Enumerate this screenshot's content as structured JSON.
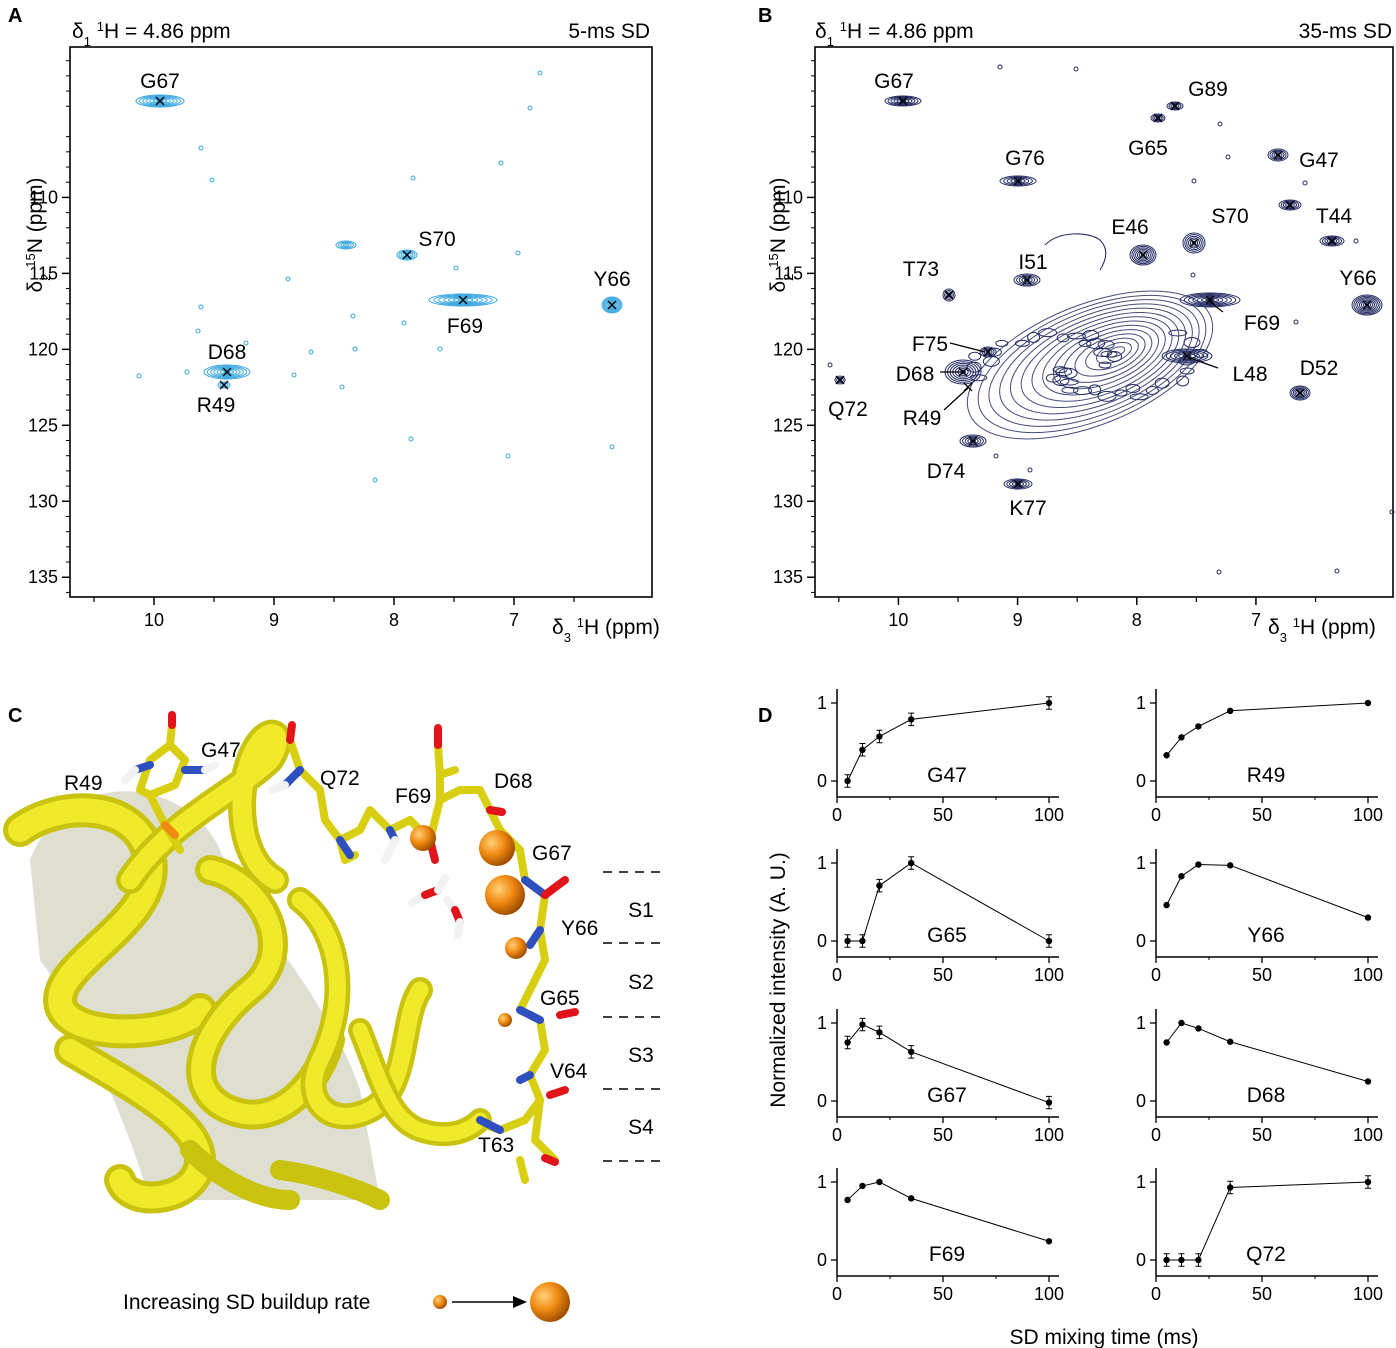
{
  "panels": {
    "A": {
      "letter": "A",
      "header_left": "δ1 1H = 4.86 ppm",
      "header_right": "5-ms SD",
      "ylabel": "δ2 15N (ppm)",
      "xlabel": "δ3 1H (ppm)",
      "color": "#3aa8df",
      "xticks": [
        "10",
        "9",
        "8",
        "7"
      ],
      "yticks": [
        "110",
        "115",
        "120",
        "125",
        "130",
        "135"
      ],
      "labels": [
        "G67",
        "S70",
        "Y66",
        "F69",
        "D68",
        "R49"
      ]
    },
    "B": {
      "letter": "B",
      "header_left": "δ1 1H = 4.86 ppm",
      "header_right": "35-ms SD",
      "ylabel": "δ2 15N (ppm)",
      "xlabel": "δ3 1H (ppm)",
      "color": "#262e64",
      "xticks": [
        "10",
        "9",
        "8",
        "7"
      ],
      "yticks": [
        "110",
        "115",
        "120",
        "125",
        "130",
        "135"
      ],
      "labels": [
        "G67",
        "G89",
        "G65",
        "G47",
        "G76",
        "S70",
        "T44",
        "E46",
        "T73",
        "I51",
        "Y66",
        "F69",
        "F75",
        "D68",
        "L48",
        "Q72",
        "R49",
        "D52",
        "D74",
        "K77"
      ]
    },
    "C": {
      "letter": "C",
      "residue_labels": [
        "R49",
        "G47",
        "Q72",
        "F69",
        "D68",
        "G67",
        "Y66",
        "G65",
        "V64",
        "T63"
      ],
      "sites": [
        "S1",
        "S2",
        "S3",
        "S4"
      ],
      "legend_text": "Increasing SD buildup rate",
      "ribbon_color": "#e8e21a",
      "sphere_color": "#f08a12"
    },
    "D": {
      "letter": "D",
      "ylabel": "Normalized intensity (A. U.)",
      "xlabel": "SD mixing time (ms)"
    }
  },
  "chart_data": [
    {
      "type": "line",
      "name": "G47",
      "x": [
        5,
        12,
        20,
        35,
        100
      ],
      "y": [
        0.0,
        0.4,
        0.57,
        0.79,
        1.0
      ],
      "errorbars": true,
      "xticks": [
        0,
        50,
        100
      ],
      "yticks": [
        0,
        1
      ]
    },
    {
      "type": "line",
      "name": "R49",
      "x": [
        5,
        12,
        20,
        35,
        100
      ],
      "y": [
        0.33,
        0.56,
        0.7,
        0.9,
        1.0
      ],
      "errorbars": false,
      "xticks": [
        0,
        50,
        100
      ],
      "yticks": [
        0,
        1
      ]
    },
    {
      "type": "line",
      "name": "G65",
      "x": [
        5,
        12,
        20,
        35,
        100
      ],
      "y": [
        0.0,
        0.0,
        0.71,
        1.0,
        0.0
      ],
      "errorbars": true,
      "xticks": [
        0,
        50,
        100
      ],
      "yticks": [
        0,
        1
      ]
    },
    {
      "type": "line",
      "name": "Y66",
      "x": [
        5,
        12,
        20,
        35,
        100
      ],
      "y": [
        0.46,
        0.83,
        0.98,
        0.97,
        0.3
      ],
      "errorbars": false,
      "xticks": [
        0,
        50,
        100
      ],
      "yticks": [
        0,
        1
      ]
    },
    {
      "type": "line",
      "name": "G67",
      "x": [
        5,
        12,
        20,
        35,
        100
      ],
      "y": [
        0.75,
        0.98,
        0.88,
        0.63,
        -0.02
      ],
      "errorbars": true,
      "xticks": [
        0,
        50,
        100
      ],
      "yticks": [
        0,
        1
      ]
    },
    {
      "type": "line",
      "name": "D68",
      "x": [
        5,
        12,
        20,
        35,
        100
      ],
      "y": [
        0.75,
        1.0,
        0.93,
        0.76,
        0.25
      ],
      "errorbars": false,
      "xticks": [
        0,
        50,
        100
      ],
      "yticks": [
        0,
        1
      ]
    },
    {
      "type": "line",
      "name": "F69",
      "x": [
        5,
        12,
        20,
        35,
        100
      ],
      "y": [
        0.77,
        0.95,
        1.0,
        0.79,
        0.24
      ],
      "errorbars": false,
      "xticks": [
        0,
        50,
        100
      ],
      "yticks": [
        0,
        1
      ]
    },
    {
      "type": "line",
      "name": "Q72",
      "x": [
        5,
        12,
        20,
        35,
        100
      ],
      "y": [
        0.0,
        0.0,
        0.0,
        0.93,
        1.0
      ],
      "errorbars": true,
      "xticks": [
        0,
        50,
        100
      ],
      "yticks": [
        0,
        1
      ]
    }
  ]
}
